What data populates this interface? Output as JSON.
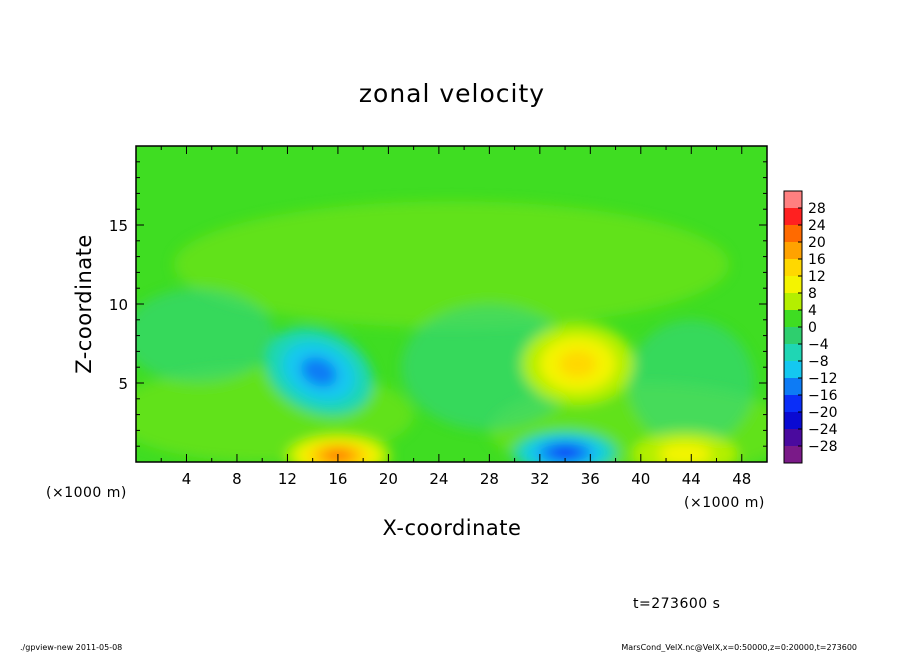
{
  "chart_data": {
    "type": "heatmap",
    "title": "zonal velocity",
    "xlabel": "X-coordinate",
    "ylabel": "Z-coordinate",
    "x_unit": "(×1000 m)",
    "y_unit": "(×1000 m)",
    "xlim": [
      0,
      50
    ],
    "ylim": [
      0,
      20
    ],
    "x_ticks": [
      4,
      8,
      12,
      16,
      20,
      24,
      28,
      32,
      36,
      40,
      44,
      48
    ],
    "y_ticks": [
      5,
      10,
      15
    ],
    "colorbar": {
      "levels": [
        28,
        24,
        20,
        16,
        12,
        8,
        4,
        0,
        -4,
        -8,
        -12,
        -16,
        -20,
        -24,
        -28
      ],
      "colors": [
        "#ff8080",
        "#ff2020",
        "#ff6a00",
        "#ffa200",
        "#ffd800",
        "#f4f400",
        "#b4ef00",
        "#3fdd22",
        "#2ecf6e",
        "#1fd6b4",
        "#14c8f0",
        "#0d7bf5",
        "#0a2ef8",
        "#0a0ad2",
        "#4a0a9e",
        "#7a1a88"
      ]
    },
    "features": [
      {
        "kind": "low",
        "x": 14.5,
        "z": 5.7,
        "value": -12
      },
      {
        "kind": "high",
        "x": 35,
        "z": 6.2,
        "value": 12
      },
      {
        "kind": "high",
        "x": 16,
        "z": 0.4,
        "value": 20
      },
      {
        "kind": "low",
        "x": 34,
        "z": 0.6,
        "value": -16
      },
      {
        "kind": "high",
        "x": 43.5,
        "z": 0.5,
        "value": 8
      }
    ],
    "background_value": 0,
    "time_label": "t=273600 s"
  },
  "footer": {
    "left": "./gpview-new   2011-05-08",
    "right": "MarsCond_VelX.nc@VelX,x=0:50000,z=0:20000,t=273600"
  }
}
